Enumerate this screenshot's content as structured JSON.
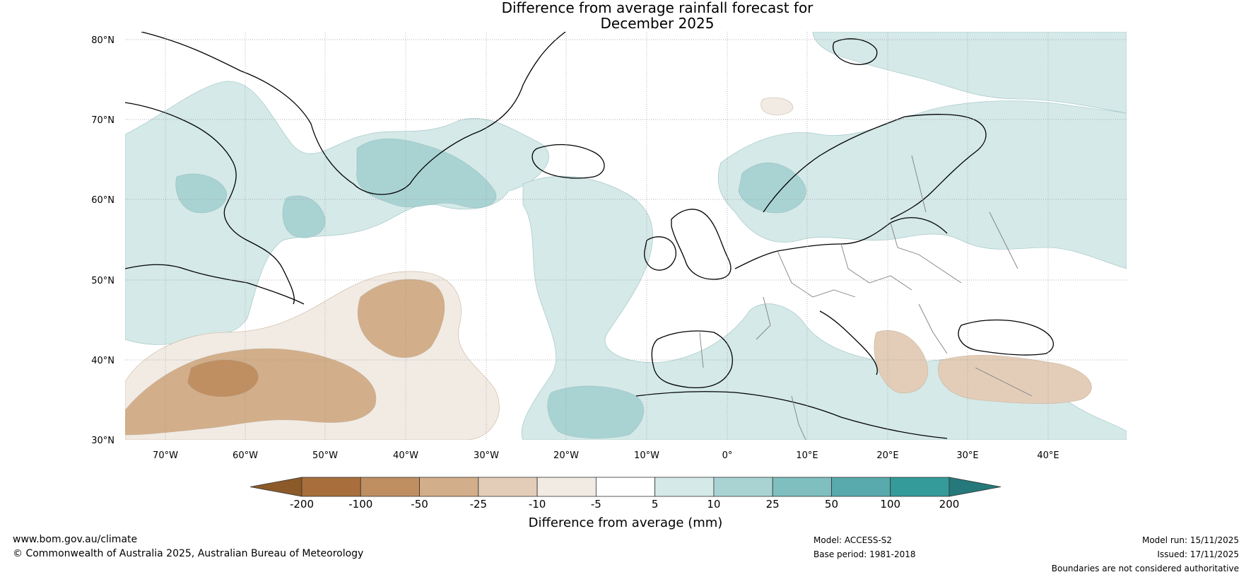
{
  "title": {
    "line1": "Difference from average rainfall forecast for",
    "line2": "December 2025"
  },
  "map": {
    "lat_labels": [
      "80°N",
      "70°N",
      "60°N",
      "50°N",
      "40°N",
      "30°N"
    ],
    "lon_labels": [
      "70°W",
      "60°W",
      "50°W",
      "40°W",
      "30°W",
      "20°W",
      "10°W",
      "0°",
      "10°E",
      "20°E",
      "30°E",
      "40°E"
    ],
    "colors": {
      "ocean_land": "#ffffff",
      "coast": "#000000",
      "border": "#808080",
      "grid": "#999999"
    }
  },
  "legend": {
    "label": "Difference from average (mm)",
    "ticks": [
      "-200",
      "-100",
      "-50",
      "-25",
      "-10",
      "-5",
      "5",
      "10",
      "25",
      "50",
      "100",
      "200"
    ],
    "colors": [
      "#8c5a28",
      "#a86f3c",
      "#bf8f62",
      "#d2ae8a",
      "#e3cdb9",
      "#f1ebe4",
      "#ffffff",
      "#d4e9e8",
      "#a9d3d3",
      "#7fbfbf",
      "#58aaac",
      "#349a9a",
      "#25797a"
    ]
  },
  "footer": {
    "website": "www.bom.gov.au/climate",
    "copyright": "© Commonwealth of Australia 2025, Australian Bureau of Meteorology",
    "model": "Model: ACCESS-S2",
    "base_period": "Base period: 1981-2018",
    "model_run": "Model run: 15/11/2025",
    "issued": "Issued: 17/11/2025",
    "disclaimer": "Boundaries are not considered authoritative"
  }
}
